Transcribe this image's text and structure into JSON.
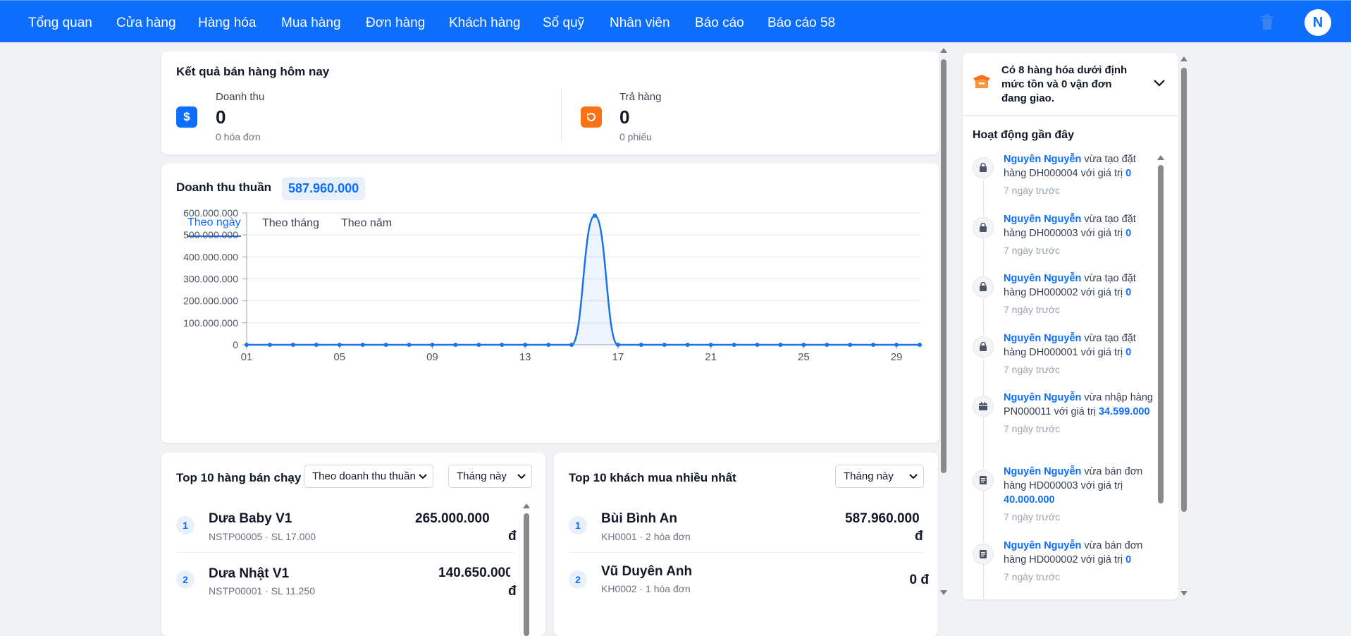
{
  "nav": {
    "items": [
      "Tổng quan",
      "Cửa hàng",
      "Hàng hóa",
      "Mua hàng",
      "Đơn hàng",
      "Khách hàng",
      "Sổ quỹ",
      "Nhân viên",
      "Báo cáo",
      "Báo cáo 58"
    ],
    "avatar": "N"
  },
  "today": {
    "title": "Kết quả bán hàng hôm nay",
    "revenue": {
      "label": "Doanh thu",
      "value": "0",
      "sub": "0 hóa đơn"
    },
    "returns": {
      "label": "Trả hàng",
      "value": "0",
      "sub": "0 phiếu"
    }
  },
  "revenue_card": {
    "title": "Doanh thu thuần",
    "total": "587.960.000",
    "tabs": [
      "Theo ngày",
      "Theo tháng",
      "Theo năm"
    ],
    "active_tab": 0
  },
  "chart_data": {
    "type": "area",
    "x": [
      "01",
      "02",
      "03",
      "04",
      "05",
      "06",
      "07",
      "08",
      "09",
      "10",
      "11",
      "12",
      "13",
      "14",
      "15",
      "16",
      "17",
      "18",
      "19",
      "20",
      "21",
      "22",
      "23",
      "24",
      "25",
      "26",
      "27",
      "28",
      "29",
      "30"
    ],
    "values": [
      0,
      0,
      0,
      0,
      0,
      0,
      0,
      0,
      0,
      0,
      0,
      0,
      0,
      0,
      0,
      587960000,
      0,
      0,
      0,
      0,
      0,
      0,
      0,
      0,
      0,
      0,
      0,
      0,
      0,
      0
    ],
    "x_tick_labels": [
      "01",
      "05",
      "09",
      "13",
      "17",
      "21",
      "25",
      "29"
    ],
    "y_tick_labels": [
      "0",
      "100.000.000",
      "200.000.000",
      "300.000.000",
      "400.000.000",
      "500.000.000",
      "600.000.000"
    ],
    "ylim": [
      0,
      600000000
    ],
    "grid": true,
    "color": "#1a73e8"
  },
  "top_products": {
    "title": "Top 10 hàng bán chạy",
    "sort_select": "Theo doanh thu thuần",
    "period_select": "Tháng này",
    "items": [
      {
        "rank": "1",
        "name": "Dưa Baby V1",
        "sub": "NSTP00005 · SL 17.000",
        "value": "265.000.000",
        "currency": "đ"
      },
      {
        "rank": "2",
        "name": "Dưa Nhật V1",
        "sub": "NSTP00001 · SL 11.250",
        "value": "140.650.000",
        "currency": "đ"
      }
    ]
  },
  "top_customers": {
    "title": "Top 10 khách mua nhiều nhất",
    "period_select": "Tháng này",
    "items": [
      {
        "rank": "1",
        "name": "Bùi Bình An",
        "sub": "KH0001 · 2 hóa đơn",
        "value": "587.960.000",
        "currency": "đ"
      },
      {
        "rank": "2",
        "name": "Vũ Duyên Anh",
        "sub": "KH0002 · 1 hóa đơn",
        "value": "0 đ",
        "currency": ""
      }
    ]
  },
  "alert": {
    "text": "Có 8 hàng hóa dưới định mức tồn và 0 vận đơn đang giao."
  },
  "activity": {
    "title": "Hoạt động gần đây",
    "items": [
      {
        "icon": "shopping-bag-icon",
        "user": "Nguyên Nguyễn",
        "action": " vừa tạo đặt hàng DH000004 với giá trị ",
        "value": "0",
        "time": "7 ngày trước"
      },
      {
        "icon": "shopping-bag-icon",
        "user": "Nguyên Nguyễn",
        "action": " vừa tạo đặt hàng DH000003 với giá trị ",
        "value": "0",
        "time": "7 ngày trước"
      },
      {
        "icon": "shopping-bag-icon",
        "user": "Nguyên Nguyễn",
        "action": " vừa tạo đặt hàng DH000002 với giá trị ",
        "value": "0",
        "time": "7 ngày trước"
      },
      {
        "icon": "shopping-bag-icon",
        "user": "Nguyên Nguyễn",
        "action": " vừa tạo đặt hàng DH000001 với giá trị ",
        "value": "0",
        "time": "7 ngày trước"
      },
      {
        "icon": "package-icon",
        "user": "Nguyên Nguyễn",
        "action": " vừa nhập hàng PN000011 với giá trị ",
        "value": "34.599.000",
        "time": "7 ngày trước"
      },
      {
        "icon": "receipt-icon",
        "user": "Nguyên Nguyễn",
        "action": " vừa bán đơn hàng HD000003 với giá trị ",
        "value": "40.000.000",
        "time": "7 ngày trước"
      },
      {
        "icon": "receipt-icon",
        "user": "Nguyên Nguyễn",
        "action": " vừa bán đơn hàng HD000002 với giá trị ",
        "value": "0",
        "time": "7 ngày trước"
      }
    ]
  }
}
